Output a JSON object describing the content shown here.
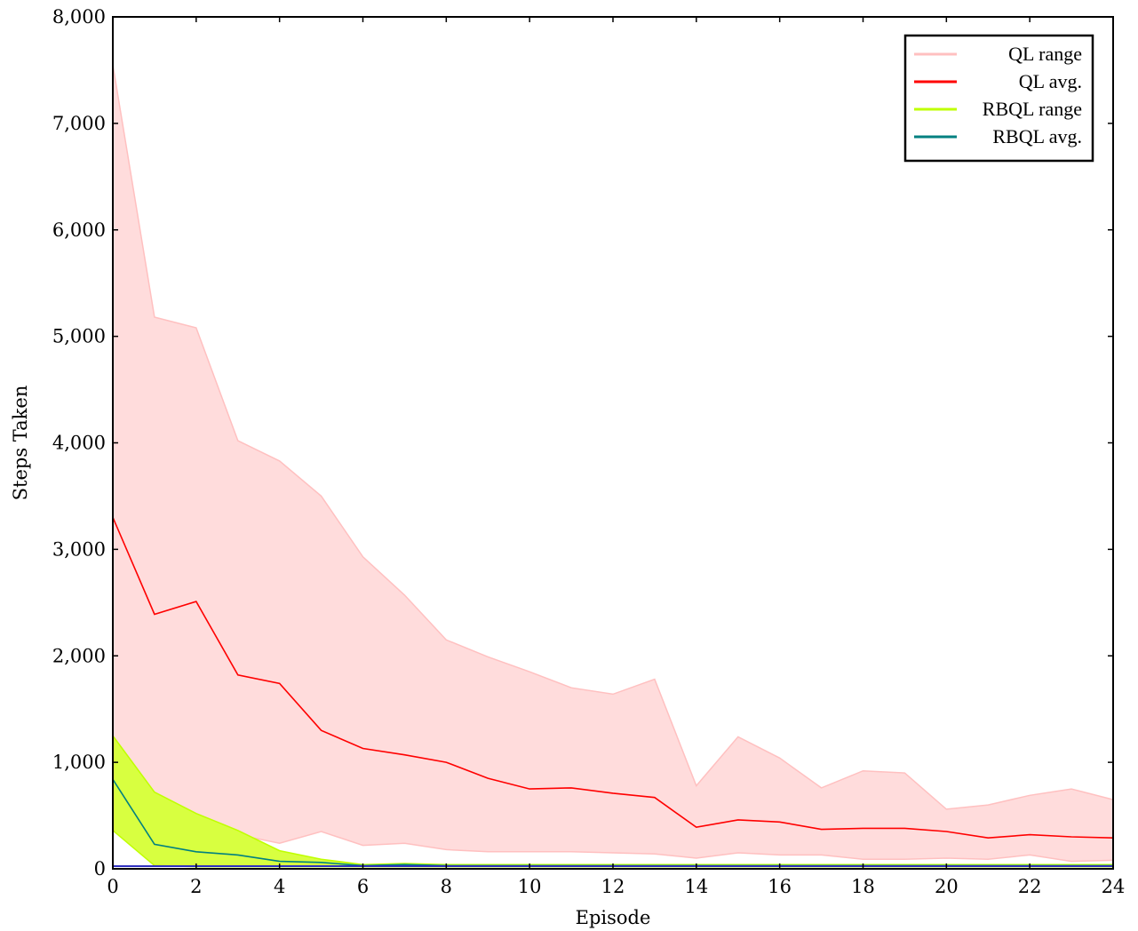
{
  "chart_data": {
    "type": "area",
    "title": "",
    "xlabel": "Episode",
    "ylabel": "Steps Taken",
    "xlim": [
      0,
      24
    ],
    "ylim": [
      0,
      8000
    ],
    "x_ticks": [
      0,
      2,
      4,
      6,
      8,
      10,
      12,
      14,
      16,
      18,
      20,
      22,
      24
    ],
    "y_ticks": [
      0,
      1000,
      2000,
      3000,
      4000,
      5000,
      6000,
      7000,
      8000
    ],
    "y_tick_labels": [
      "0",
      "1,000",
      "2,000",
      "3,000",
      "4,000",
      "5,000",
      "6,000",
      "7,000",
      "8,000"
    ],
    "grid": false,
    "legend_position": "top-right",
    "x": [
      0,
      1,
      2,
      3,
      4,
      5,
      6,
      7,
      8,
      9,
      10,
      11,
      12,
      13,
      14,
      15,
      16,
      17,
      18,
      19,
      20,
      21,
      22,
      23,
      24
    ],
    "series": [
      {
        "name": "QL range",
        "kind": "range",
        "color": "#ffc0c0",
        "fill": "#ffdcdc",
        "upper": [
          7550,
          5180,
          5080,
          4020,
          3830,
          3500,
          2930,
          2570,
          2150,
          1990,
          1850,
          1700,
          1640,
          1780,
          780,
          1240,
          1040,
          760,
          920,
          900,
          560,
          600,
          690,
          750,
          650
        ],
        "lower": [
          480,
          450,
          270,
          320,
          240,
          350,
          220,
          240,
          180,
          160,
          160,
          160,
          150,
          140,
          100,
          150,
          130,
          130,
          90,
          90,
          100,
          90,
          130,
          70,
          80
        ]
      },
      {
        "name": "QL avg.",
        "kind": "line",
        "color": "#ff0000",
        "values": [
          3300,
          2390,
          2510,
          1820,
          1740,
          1300,
          1130,
          1070,
          1000,
          850,
          750,
          760,
          710,
          670,
          390,
          460,
          440,
          370,
          380,
          380,
          350,
          290,
          320,
          300,
          290
        ]
      },
      {
        "name": "RBQL range",
        "kind": "range",
        "color": "#bfff00",
        "fill": "#d8ff40",
        "upper": [
          1250,
          720,
          520,
          360,
          170,
          90,
          40,
          50,
          40,
          40,
          40,
          40,
          40,
          40,
          40,
          40,
          40,
          40,
          40,
          40,
          40,
          40,
          40,
          40,
          40
        ],
        "lower": [
          360,
          30,
          20,
          20,
          20,
          20,
          20,
          20,
          20,
          20,
          20,
          20,
          20,
          20,
          20,
          20,
          20,
          20,
          20,
          20,
          20,
          20,
          20,
          20,
          20
        ]
      },
      {
        "name": "RBQL avg.",
        "kind": "line",
        "color": "#008080",
        "values": [
          840,
          230,
          160,
          130,
          70,
          60,
          30,
          40,
          30,
          30,
          30,
          30,
          30,
          30,
          30,
          30,
          30,
          30,
          30,
          30,
          30,
          30,
          30,
          30,
          30
        ]
      }
    ]
  }
}
